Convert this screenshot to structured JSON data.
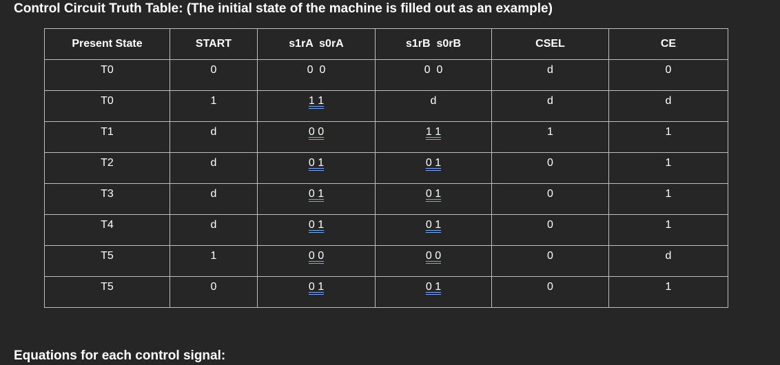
{
  "title": "Control Circuit Truth Table: (The initial state of the machine is filled out as an example)",
  "table": {
    "headers": [
      "Present State",
      "START",
      "s1rA  s0rA",
      "s1rB  s0rB",
      "CSEL",
      "CE"
    ],
    "rows": [
      [
        "T0",
        "0",
        "0  0",
        "0  0",
        "d",
        "0"
      ],
      [
        "T0",
        "1",
        "1 1",
        "d",
        "d",
        "d"
      ],
      [
        "T1",
        "d",
        "0 0",
        "1 1",
        "1",
        "1"
      ],
      [
        "T2",
        "d",
        "0 1",
        "0 1",
        "0",
        "1"
      ],
      [
        "T3",
        "d",
        "0 1",
        "0 1",
        "0",
        "1"
      ],
      [
        "T4",
        "d",
        "0 1",
        "0 1",
        "0",
        "1"
      ],
      [
        "T5",
        "1",
        "0 0",
        "0 0",
        "0",
        "d"
      ],
      [
        "T5",
        "0",
        "0 1",
        "0 1",
        "0",
        "1"
      ]
    ]
  },
  "footer": "Equations for each control signal:"
}
